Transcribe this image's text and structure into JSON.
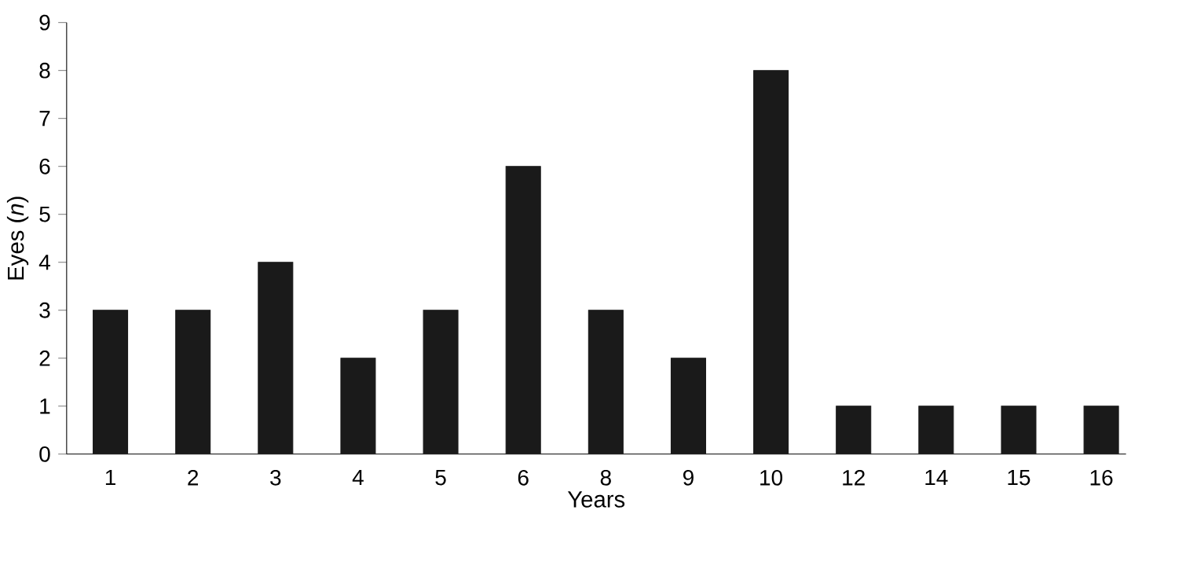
{
  "chart_data": {
    "type": "bar",
    "xlabel": "Years",
    "ylabel": "Eyes (*n*)",
    "categories": [
      "1",
      "2",
      "3",
      "4",
      "5",
      "6",
      "8",
      "9",
      "10",
      "12",
      "14",
      "15",
      "16"
    ],
    "values": [
      3,
      3,
      4,
      2,
      3,
      6,
      3,
      2,
      8,
      1,
      1,
      1,
      1
    ],
    "color": "#1a1a1a",
    "ylim": [
      0,
      9
    ],
    "yticks": [
      0,
      1,
      2,
      3,
      4,
      5,
      6,
      7,
      8,
      9
    ],
    "grid": false,
    "legend": false
  }
}
